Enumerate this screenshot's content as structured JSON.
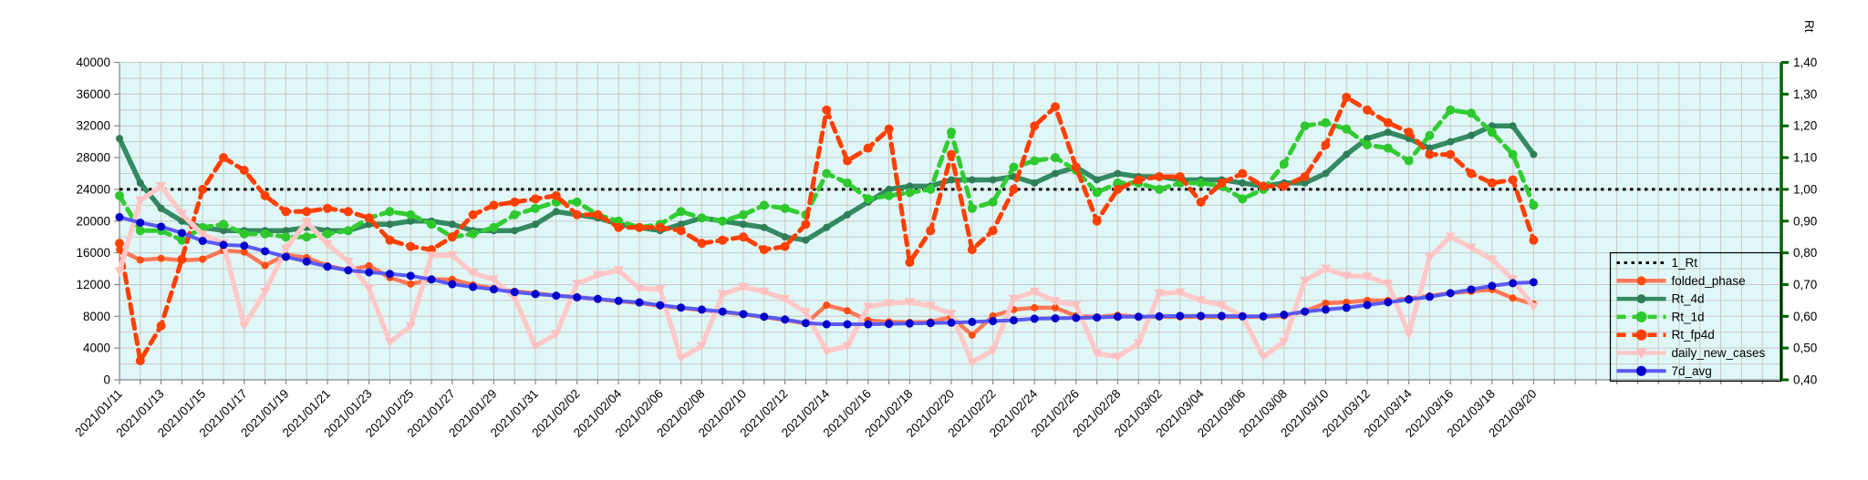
{
  "chart_data": {
    "type": "line",
    "title": "",
    "x_label_format": "yyyy/mm/dd",
    "x_labels_every": 2,
    "grid": true,
    "legend_position": "right-inside",
    "plot_bg_color": "#E0F7F7",
    "grid_color": "#C8C8C8",
    "axis_color": "#888888",
    "right_axis_color": "#006400",
    "right_axis_title": "Rt",
    "left_axis": {
      "min": 0,
      "max": 40000,
      "tick_step": 4000,
      "grid_step": 2000,
      "tick_labels": [
        "0",
        "4000",
        "8000",
        "12000",
        "16000",
        "20000",
        "24000",
        "28000",
        "32000",
        "36000",
        "40000"
      ]
    },
    "right_axis": {
      "min": 0.4,
      "max": 1.4,
      "tick_step": 0.1,
      "tick_labels": [
        "0,40",
        "0,50",
        "0,60",
        "0,70",
        "0,80",
        "0,90",
        "1,00",
        "1,10",
        "1,20",
        "1,30",
        "1,40"
      ]
    },
    "dates": [
      "2021/01/11",
      "2021/01/12",
      "2021/01/13",
      "2021/01/14",
      "2021/01/15",
      "2021/01/16",
      "2021/01/17",
      "2021/01/18",
      "2021/01/19",
      "2021/01/20",
      "2021/01/21",
      "2021/01/22",
      "2021/01/23",
      "2021/01/24",
      "2021/01/25",
      "2021/01/26",
      "2021/01/27",
      "2021/01/28",
      "2021/01/29",
      "2021/01/30",
      "2021/01/31",
      "2021/02/01",
      "2021/02/02",
      "2021/02/03",
      "2021/02/04",
      "2021/02/05",
      "2021/02/06",
      "2021/02/07",
      "2021/02/08",
      "2021/02/09",
      "2021/02/10",
      "2021/02/11",
      "2021/02/12",
      "2021/02/13",
      "2021/02/14",
      "2021/02/15",
      "2021/02/16",
      "2021/02/17",
      "2021/02/18",
      "2021/02/19",
      "2021/02/20",
      "2021/02/21",
      "2021/02/22",
      "2021/02/23",
      "2021/02/24",
      "2021/02/25",
      "2021/02/26",
      "2021/02/27",
      "2021/02/28",
      "2021/03/01",
      "2021/03/02",
      "2021/03/03",
      "2021/03/04",
      "2021/03/05",
      "2021/03/06",
      "2021/03/07",
      "2021/03/08",
      "2021/03/09",
      "2021/03/10",
      "2021/03/11",
      "2021/03/12",
      "2021/03/13",
      "2021/03/14",
      "2021/03/15",
      "2021/03/16",
      "2021/03/17",
      "2021/03/18",
      "2021/03/19",
      "2021/03/20"
    ],
    "series": [
      {
        "name": "1_Rt",
        "axis": "right",
        "const_value": 1.0,
        "color": "#000000",
        "width": 3,
        "dash": "3.5 4.5",
        "marker": "none"
      },
      {
        "name": "folded_phase",
        "axis": "left",
        "color": "#FF7857",
        "marker_color": "#FF4E11",
        "width": 4.5,
        "dash": "",
        "marker": "circle",
        "marker_size": 4,
        "values": [
          16400,
          15100,
          15300,
          15050,
          15200,
          16300,
          16100,
          14400,
          15750,
          15400,
          14370,
          13800,
          14370,
          12870,
          12070,
          12650,
          12650,
          11950,
          11500,
          11150,
          10900,
          10600,
          10450,
          10150,
          9900,
          9700,
          9300,
          9050,
          8800,
          8550,
          8250,
          7900,
          7550,
          7100,
          9400,
          8700,
          7470,
          7300,
          7250,
          7300,
          7930,
          5630,
          8050,
          8850,
          9080,
          9080,
          8050,
          7900,
          8130,
          7930,
          7930,
          7930,
          7930,
          7930,
          7930,
          7930,
          8050,
          8620,
          9655,
          9770,
          10000,
          10000,
          10230,
          10575,
          10920,
          11150,
          11380,
          10300,
          9550
        ]
      },
      {
        "name": "Rt_4d",
        "axis": "right",
        "color": "#348A62",
        "marker_color": "#2E7D57",
        "width": 5.5,
        "dash": "",
        "marker": "circle",
        "marker_size": 4,
        "values": [
          1.16,
          1.02,
          0.94,
          0.9,
          0.88,
          0.87,
          0.87,
          0.87,
          0.87,
          0.88,
          0.87,
          0.87,
          0.89,
          0.89,
          0.9,
          0.9,
          0.89,
          0.87,
          0.87,
          0.87,
          0.89,
          0.93,
          0.92,
          0.91,
          0.89,
          0.88,
          0.87,
          0.89,
          0.91,
          0.9,
          0.89,
          0.88,
          0.85,
          0.84,
          0.88,
          0.92,
          0.96,
          1.0,
          1.01,
          1.01,
          1.03,
          1.03,
          1.03,
          1.04,
          1.02,
          1.05,
          1.07,
          1.03,
          1.05,
          1.04,
          1.04,
          1.03,
          1.03,
          1.03,
          1.02,
          1.01,
          1.02,
          1.02,
          1.05,
          1.11,
          1.16,
          1.18,
          1.16,
          1.13,
          1.15,
          1.17,
          1.2,
          1.2,
          1.11
        ]
      },
      {
        "name": "Rt_1d",
        "axis": "right",
        "color": "#33CC33",
        "marker_color": "#2EC82E",
        "width": 5,
        "dash": "10 7",
        "marker": "circle",
        "marker_size": 5,
        "values": [
          0.98,
          0.87,
          0.87,
          0.84,
          0.88,
          0.89,
          0.86,
          0.86,
          0.85,
          0.85,
          0.86,
          0.87,
          0.91,
          0.93,
          0.92,
          0.89,
          0.85,
          0.86,
          0.88,
          0.92,
          0.94,
          0.96,
          0.96,
          0.92,
          0.9,
          0.88,
          0.89,
          0.93,
          0.91,
          0.9,
          0.92,
          0.95,
          0.94,
          0.92,
          1.05,
          1.02,
          0.97,
          0.98,
          0.99,
          1.0,
          1.18,
          0.94,
          0.96,
          1.07,
          1.09,
          1.1,
          1.06,
          0.99,
          1.02,
          1.02,
          1.0,
          1.02,
          1.02,
          1.01,
          0.97,
          1.0,
          1.08,
          1.2,
          1.21,
          1.19,
          1.14,
          1.13,
          1.09,
          1.17,
          1.25,
          1.24,
          1.18,
          1.11,
          0.95
        ]
      },
      {
        "name": "Rt_fp4d",
        "axis": "right",
        "color": "#FF4000",
        "marker_color": "#FF4000",
        "width": 5,
        "dash": "10 7",
        "marker": "circle",
        "marker_size": 5,
        "values": [
          0.83,
          0.46,
          0.57,
          0.78,
          1.0,
          1.1,
          1.06,
          0.98,
          0.93,
          0.93,
          0.94,
          0.93,
          0.91,
          0.84,
          0.82,
          0.81,
          0.85,
          0.92,
          0.95,
          0.96,
          0.97,
          0.98,
          0.92,
          0.92,
          0.88,
          0.88,
          0.88,
          0.87,
          0.83,
          0.84,
          0.85,
          0.81,
          0.82,
          0.89,
          1.25,
          1.09,
          1.13,
          1.19,
          0.77,
          0.87,
          1.11,
          0.81,
          0.87,
          1.0,
          1.2,
          1.26,
          1.07,
          0.9,
          1.0,
          1.03,
          1.04,
          1.04,
          0.96,
          1.02,
          1.05,
          1.01,
          1.01,
          1.04,
          1.14,
          1.29,
          1.25,
          1.21,
          1.18,
          1.11,
          1.11,
          1.05,
          1.02,
          1.03,
          0.84
        ]
      },
      {
        "name": "daily_new_cases",
        "axis": "left",
        "color": "#FFC9C9",
        "marker_color": "#FFC0C0",
        "width": 5.5,
        "dash": "",
        "marker": "triangle",
        "marker_size": 5.5,
        "values": [
          13700,
          22600,
          24400,
          20900,
          18300,
          17200,
          6800,
          11100,
          16500,
          19900,
          17100,
          14900,
          11500,
          4750,
          6750,
          15650,
          15700,
          13450,
          12650,
          10350,
          4250,
          5750,
          12100,
          13200,
          13800,
          11500,
          11400,
          2750,
          4250,
          10800,
          11700,
          11100,
          10200,
          8500,
          3600,
          4250,
          9200,
          9650,
          9800,
          9300,
          8300,
          2200,
          3700,
          10200,
          11100,
          9900,
          9400,
          3300,
          2900,
          4600,
          10900,
          11000,
          10000,
          9400,
          8000,
          2900,
          4800,
          12500,
          14000,
          13100,
          13000,
          12100,
          5750,
          15400,
          18050,
          16650,
          15150,
          12650,
          9200
        ]
      },
      {
        "name": "7d_avg",
        "axis": "left",
        "color": "#5A5AF0",
        "marker_color": "#0000CD",
        "width": 4,
        "dash": "",
        "marker": "circle",
        "marker_size": 4.5,
        "values": [
          20500,
          19800,
          19300,
          18500,
          17500,
          17000,
          16900,
          16200,
          15500,
          14900,
          14250,
          13800,
          13550,
          13350,
          13100,
          12650,
          12050,
          11700,
          11400,
          11050,
          10800,
          10600,
          10400,
          10200,
          9950,
          9750,
          9400,
          9100,
          8850,
          8600,
          8280,
          7950,
          7600,
          7150,
          7000,
          7000,
          7000,
          7050,
          7100,
          7150,
          7200,
          7300,
          7400,
          7500,
          7700,
          7750,
          7800,
          7850,
          7950,
          7950,
          8000,
          8050,
          8050,
          8050,
          8000,
          8000,
          8200,
          8600,
          8850,
          9080,
          9425,
          9770,
          10115,
          10460,
          10920,
          11380,
          11840,
          12180,
          12300
        ]
      }
    ],
    "legend_entries": [
      "1_Rt",
      "folded_phase",
      "Rt_4d",
      "Rt_1d",
      "Rt_fp4d",
      "daily_new_cases",
      "7d_avg"
    ]
  }
}
